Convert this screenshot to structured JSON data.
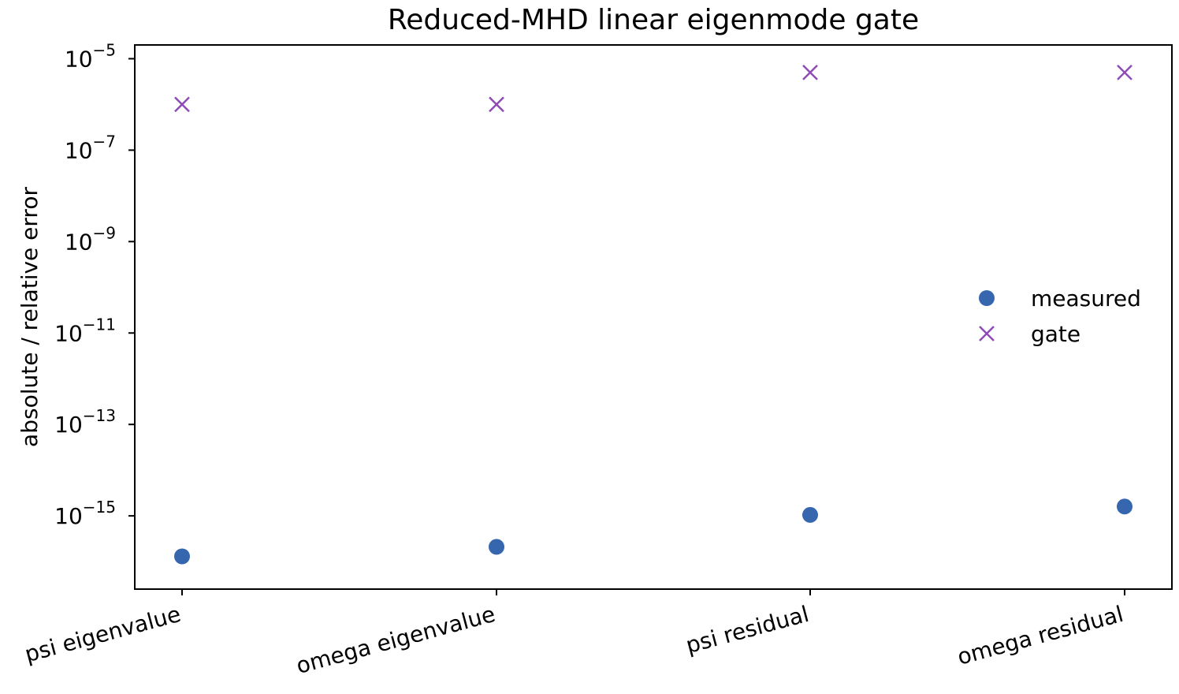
{
  "chart_data": {
    "type": "scatter",
    "title": "Reduced-MHD linear eigenmode gate",
    "xlabel": "",
    "ylabel": "absolute / relative error",
    "categories": [
      "psi eigenvalue",
      "omega eigenvalue",
      "psi residual",
      "omega residual"
    ],
    "y_scale": "log",
    "ylim": [
      2.5e-17,
      2e-05
    ],
    "y_ticks": [
      {
        "exp": -15,
        "base": "10",
        "sup": "−15"
      },
      {
        "exp": -13,
        "base": "10",
        "sup": "−13"
      },
      {
        "exp": -11,
        "base": "10",
        "sup": "−11"
      },
      {
        "exp": -9,
        "base": "10",
        "sup": "−9"
      },
      {
        "exp": -7,
        "base": "10",
        "sup": "−7"
      },
      {
        "exp": -5,
        "base": "10",
        "sup": "−5"
      }
    ],
    "series": [
      {
        "name": "measured",
        "marker": "circle",
        "color": "#3566ae",
        "values": [
          1.3e-16,
          2.1e-16,
          1.05e-15,
          1.6e-15
        ]
      },
      {
        "name": "gate",
        "marker": "x",
        "color": "#8e4bb5",
        "values": [
          1e-06,
          1e-06,
          5e-06,
          5e-06
        ]
      }
    ],
    "legend_position": "center-right",
    "grid": false
  }
}
